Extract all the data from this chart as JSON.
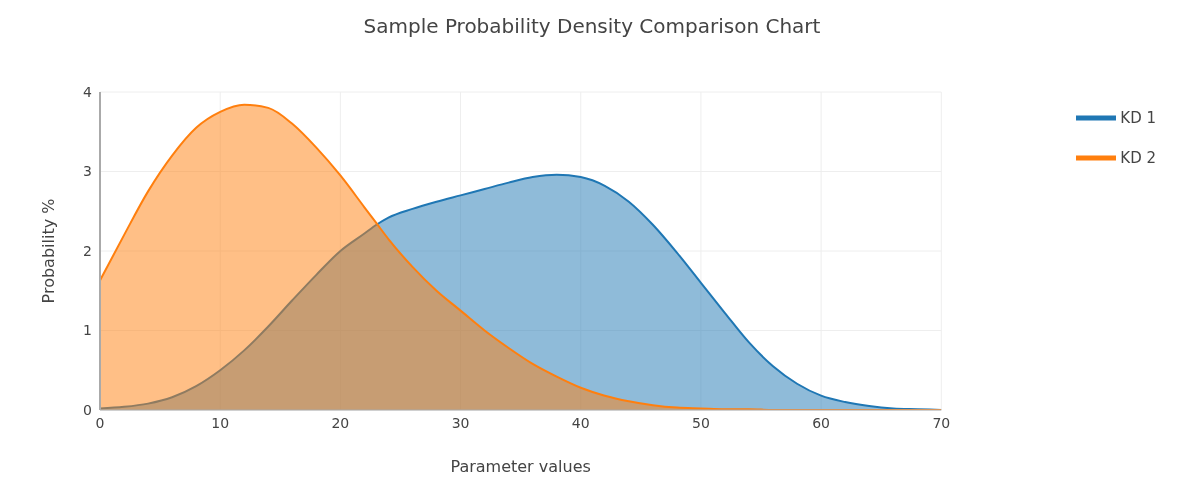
{
  "chart_data": {
    "type": "area",
    "title": "Sample Probability Density Comparison Chart",
    "xlabel": "Parameter values",
    "ylabel": "Probability %",
    "x": [
      0,
      2,
      4,
      6,
      8,
      10,
      12,
      14,
      16,
      18,
      20,
      22,
      23,
      24,
      26,
      28,
      30,
      32,
      34,
      36,
      38,
      40,
      42,
      44,
      46,
      48,
      50,
      52,
      54,
      56,
      58,
      60,
      62,
      64,
      66,
      68,
      70
    ],
    "series": [
      {
        "name": "KD 1",
        "color": "#1f77b4",
        "values": [
          0.02,
          0.04,
          0.08,
          0.16,
          0.3,
          0.5,
          0.75,
          1.05,
          1.38,
          1.7,
          2.0,
          2.22,
          2.33,
          2.42,
          2.53,
          2.62,
          2.7,
          2.78,
          2.86,
          2.93,
          2.96,
          2.93,
          2.82,
          2.62,
          2.33,
          1.98,
          1.6,
          1.22,
          0.85,
          0.55,
          0.33,
          0.18,
          0.1,
          0.05,
          0.02,
          0.01,
          0
        ]
      },
      {
        "name": "KD 2",
        "color": "#ff7f0e",
        "values": [
          1.63,
          2.2,
          2.75,
          3.2,
          3.55,
          3.75,
          3.84,
          3.8,
          3.6,
          3.3,
          2.95,
          2.55,
          2.35,
          2.15,
          1.8,
          1.5,
          1.25,
          1.0,
          0.78,
          0.58,
          0.42,
          0.28,
          0.18,
          0.11,
          0.06,
          0.03,
          0.02,
          0.01,
          0.01,
          0,
          0,
          0,
          0,
          0,
          0,
          0,
          0
        ]
      }
    ],
    "xlim": [
      0,
      70
    ],
    "xticks": [
      0,
      10,
      20,
      30,
      40,
      50,
      60,
      70
    ],
    "ylim": [
      0,
      4
    ],
    "yticks": [
      0,
      1,
      2,
      3,
      4
    ],
    "grid": true,
    "legend": "top right",
    "marker": "none",
    "line_style": "solid"
  }
}
